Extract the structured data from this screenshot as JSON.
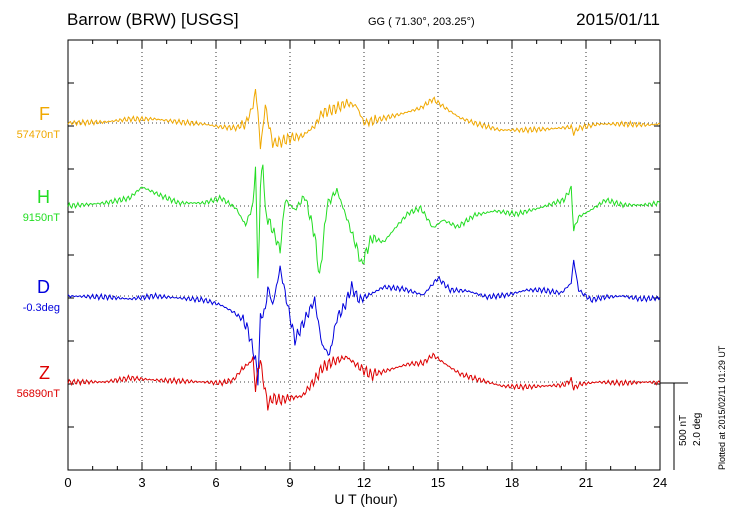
{
  "header": {
    "title": "Barrow (BRW)  [USGS]",
    "coords": "GG ( 71.30°, 203.25°)",
    "date": "2015/01/11"
  },
  "footer": {
    "plotted": "Plotted at 2015/02/11 01:29 UT"
  },
  "chart_data": {
    "type": "line",
    "xlabel": "U T (hour)",
    "xlim": [
      0,
      24
    ],
    "xticks": [
      0,
      3,
      6,
      9,
      12,
      15,
      18,
      21,
      24
    ],
    "grid": true,
    "scale": {
      "nT": "500 nT",
      "deg": "2.0 deg"
    },
    "series": [
      {
        "name": "F",
        "baseline": "57470nT",
        "color": "#f0a800",
        "points": [
          [
            0,
            123
          ],
          [
            1.5,
            122
          ],
          [
            2.5,
            119
          ],
          [
            3.5,
            119
          ],
          [
            4.5,
            122
          ],
          [
            5.5,
            124
          ],
          [
            6.2,
            127
          ],
          [
            6.8,
            128
          ],
          [
            7.2,
            124
          ],
          [
            7.5,
            106
          ],
          [
            7.6,
            90
          ],
          [
            7.7,
            112
          ],
          [
            7.8,
            148
          ],
          [
            7.9,
            128
          ],
          [
            8.0,
            105
          ],
          [
            8.1,
            120
          ],
          [
            8.3,
            143
          ],
          [
            8.6,
            142
          ],
          [
            9.0,
            138
          ],
          [
            9.5,
            136
          ],
          [
            10.0,
            126
          ],
          [
            10.3,
            113
          ],
          [
            10.8,
            109
          ],
          [
            11.3,
            103
          ],
          [
            11.7,
            106
          ],
          [
            12.0,
            123
          ],
          [
            12.5,
            120
          ],
          [
            13.5,
            114
          ],
          [
            14.3,
            108
          ],
          [
            14.8,
            99
          ],
          [
            15.3,
            108
          ],
          [
            15.9,
            118
          ],
          [
            16.6,
            124
          ],
          [
            17.5,
            130
          ],
          [
            18.5,
            130
          ],
          [
            19.5,
            129
          ],
          [
            20.4,
            127
          ],
          [
            20.5,
            133
          ],
          [
            20.7,
            128
          ],
          [
            21.5,
            124
          ],
          [
            22.5,
            124
          ],
          [
            23.5,
            125
          ],
          [
            24,
            124
          ]
        ]
      },
      {
        "name": "H",
        "baseline": "9150nT",
        "color": "#22dd22",
        "points": [
          [
            0,
            206
          ],
          [
            1.5,
            203
          ],
          [
            2.5,
            198
          ],
          [
            3.0,
            187
          ],
          [
            3.8,
            196
          ],
          [
            4.5,
            203
          ],
          [
            5.5,
            203
          ],
          [
            6.2,
            198
          ],
          [
            6.8,
            208
          ],
          [
            7.2,
            225
          ],
          [
            7.5,
            205
          ],
          [
            7.6,
            165
          ],
          [
            7.7,
            278
          ],
          [
            7.8,
            190
          ],
          [
            7.9,
            160
          ],
          [
            8.0,
            213
          ],
          [
            8.3,
            230
          ],
          [
            8.6,
            250
          ],
          [
            8.8,
            200
          ],
          [
            9.2,
            210
          ],
          [
            9.6,
            196
          ],
          [
            10.0,
            235
          ],
          [
            10.2,
            278
          ],
          [
            10.5,
            205
          ],
          [
            10.9,
            190
          ],
          [
            11.3,
            218
          ],
          [
            11.7,
            247
          ],
          [
            11.9,
            265
          ],
          [
            12.3,
            238
          ],
          [
            12.8,
            242
          ],
          [
            13.3,
            227
          ],
          [
            13.8,
            213
          ],
          [
            14.3,
            208
          ],
          [
            14.8,
            228
          ],
          [
            15.2,
            220
          ],
          [
            15.8,
            227
          ],
          [
            16.5,
            215
          ],
          [
            17.3,
            211
          ],
          [
            18.2,
            214
          ],
          [
            19.1,
            208
          ],
          [
            20.1,
            200
          ],
          [
            20.4,
            188
          ],
          [
            20.5,
            230
          ],
          [
            20.7,
            217
          ],
          [
            21.2,
            210
          ],
          [
            21.8,
            200
          ],
          [
            22.5,
            205
          ],
          [
            23.3,
            205
          ],
          [
            24,
            203
          ]
        ]
      },
      {
        "name": "D",
        "baseline": "-0.3deg",
        "color": "#0000dd",
        "points": [
          [
            0,
            296
          ],
          [
            1.5,
            297
          ],
          [
            2.5,
            299
          ],
          [
            3.5,
            296
          ],
          [
            4.5,
            298
          ],
          [
            5.5,
            300
          ],
          [
            6.2,
            305
          ],
          [
            6.7,
            312
          ],
          [
            7.1,
            320
          ],
          [
            7.3,
            330
          ],
          [
            7.5,
            350
          ],
          [
            7.6,
            360
          ],
          [
            7.7,
            380
          ],
          [
            7.8,
            318
          ],
          [
            8.0,
            310
          ],
          [
            8.1,
            287
          ],
          [
            8.3,
            305
          ],
          [
            8.6,
            268
          ],
          [
            8.9,
            305
          ],
          [
            9.2,
            340
          ],
          [
            9.6,
            320
          ],
          [
            10.0,
            300
          ],
          [
            10.3,
            345
          ],
          [
            10.6,
            355
          ],
          [
            10.9,
            318
          ],
          [
            11.2,
            307
          ],
          [
            11.5,
            287
          ],
          [
            11.8,
            300
          ],
          [
            12.2,
            295
          ],
          [
            12.8,
            287
          ],
          [
            13.6,
            289
          ],
          [
            14.4,
            295
          ],
          [
            15.0,
            278
          ],
          [
            15.5,
            290
          ],
          [
            16.2,
            291
          ],
          [
            17.0,
            297
          ],
          [
            17.8,
            295
          ],
          [
            18.6,
            290
          ],
          [
            19.2,
            290
          ],
          [
            20.0,
            293
          ],
          [
            20.4,
            283
          ],
          [
            20.5,
            260
          ],
          [
            20.7,
            290
          ],
          [
            21.2,
            300
          ],
          [
            21.8,
            297
          ],
          [
            22.5,
            296
          ],
          [
            23.2,
            299
          ],
          [
            24,
            298
          ]
        ]
      },
      {
        "name": "Z",
        "baseline": "56890nT",
        "color": "#dd0000",
        "points": [
          [
            0,
            382
          ],
          [
            1.5,
            382
          ],
          [
            2.5,
            378
          ],
          [
            3.5,
            380
          ],
          [
            4.5,
            381
          ],
          [
            5.5,
            382
          ],
          [
            6.2,
            383
          ],
          [
            6.7,
            380
          ],
          [
            7.1,
            368
          ],
          [
            7.4,
            362
          ],
          [
            7.5,
            358
          ],
          [
            7.6,
            390
          ],
          [
            7.7,
            370
          ],
          [
            7.8,
            360
          ],
          [
            7.9,
            378
          ],
          [
            8.0,
            392
          ],
          [
            8.1,
            405
          ],
          [
            8.3,
            398
          ],
          [
            8.6,
            400
          ],
          [
            9.0,
            398
          ],
          [
            9.5,
            396
          ],
          [
            10.0,
            380
          ],
          [
            10.3,
            368
          ],
          [
            10.7,
            362
          ],
          [
            11.3,
            357
          ],
          [
            11.8,
            367
          ],
          [
            12.3,
            375
          ],
          [
            13.0,
            370
          ],
          [
            13.8,
            364
          ],
          [
            14.4,
            363
          ],
          [
            14.8,
            355
          ],
          [
            15.3,
            364
          ],
          [
            15.9,
            374
          ],
          [
            16.7,
            380
          ],
          [
            17.6,
            386
          ],
          [
            18.5,
            387
          ],
          [
            19.3,
            386
          ],
          [
            20.1,
            385
          ],
          [
            20.4,
            380
          ],
          [
            20.5,
            388
          ],
          [
            20.8,
            384
          ],
          [
            21.5,
            382
          ],
          [
            22.5,
            383
          ],
          [
            23.5,
            382
          ],
          [
            24,
            383
          ]
        ]
      }
    ]
  }
}
